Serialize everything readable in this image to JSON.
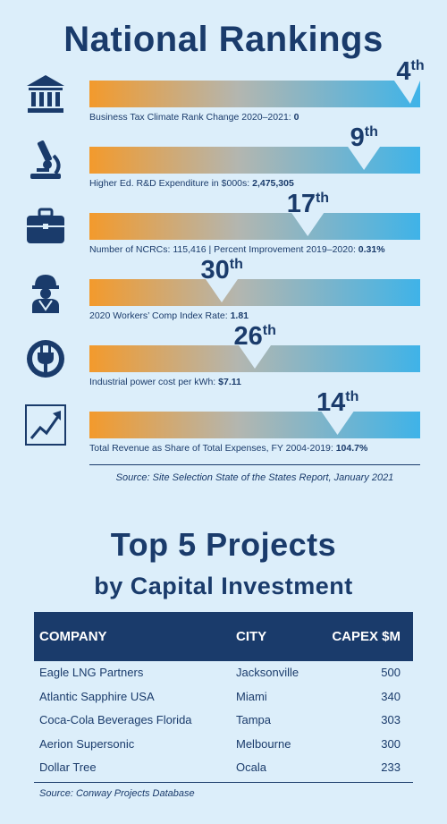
{
  "title": "National Rankings",
  "colors": {
    "orange": "#f39a2c",
    "mid": "#b3b6b0",
    "blue": "#3fb3e8",
    "navy": "#1a3b6b",
    "background": "#dceefa"
  },
  "rankings": [
    {
      "icon": "bank-icon",
      "rank_num": "4",
      "rank_suffix": "th",
      "label": "Business Tax Climate Rank Change 2020–2021:",
      "value": "0",
      "position": 0.97
    },
    {
      "icon": "microscope-icon",
      "rank_num": "9",
      "rank_suffix": "th",
      "label": "Higher Ed. R&D Expenditure in $000s:",
      "value": "2,475,305",
      "position": 0.83
    },
    {
      "icon": "briefcase-icon",
      "rank_num": "17",
      "rank_suffix": "th",
      "label": "Number of NCRCs: 115,416 | Percent Improvement 2019–2020:",
      "value": "0.31%",
      "position": 0.66
    },
    {
      "icon": "worker-icon",
      "rank_num": "30",
      "rank_suffix": "th",
      "label": "2020 Workers’ Comp Index Rate:",
      "value": "1.81",
      "position": 0.4
    },
    {
      "icon": "power-plug-icon",
      "rank_num": "26",
      "rank_suffix": "th",
      "label": "Industrial power cost per kWh:",
      "value": "$7.11",
      "position": 0.5
    },
    {
      "icon": "growth-chart-icon",
      "rank_num": "14",
      "rank_suffix": "th",
      "label": "Total Revenue as Share of Total Expenses, FY 2004-2019:",
      "value": "104.7%",
      "position": 0.75
    }
  ],
  "source1": "Source: Site Selection State of the States Report, January 2021",
  "projects_title": "Top 5 Projects",
  "projects_subtitle": "by Capital Investment",
  "table": {
    "headers": [
      "COMPANY",
      "CITY",
      "CAPEX $M"
    ],
    "rows": [
      [
        "Eagle LNG Partners",
        "Jacksonville",
        "500"
      ],
      [
        "Atlantic Sapphire USA",
        "Miami",
        "340"
      ],
      [
        "Coca-Cola Beverages Florida",
        "Tampa",
        "303"
      ],
      [
        "Aerion Supersonic",
        "Melbourne",
        "300"
      ],
      [
        "Dollar Tree",
        "Ocala",
        "233"
      ]
    ]
  },
  "source2": "Source: Conway Projects Database",
  "chart_data": {
    "type": "table",
    "title": "Top 5 Projects by Capital Investment",
    "columns": [
      "COMPANY",
      "CITY",
      "CAPEX $M"
    ],
    "categories": [
      "Eagle LNG Partners",
      "Atlantic Sapphire USA",
      "Coca-Cola Beverages Florida",
      "Aerion Supersonic",
      "Dollar Tree"
    ],
    "values": [
      500,
      340,
      303,
      300,
      233
    ]
  }
}
